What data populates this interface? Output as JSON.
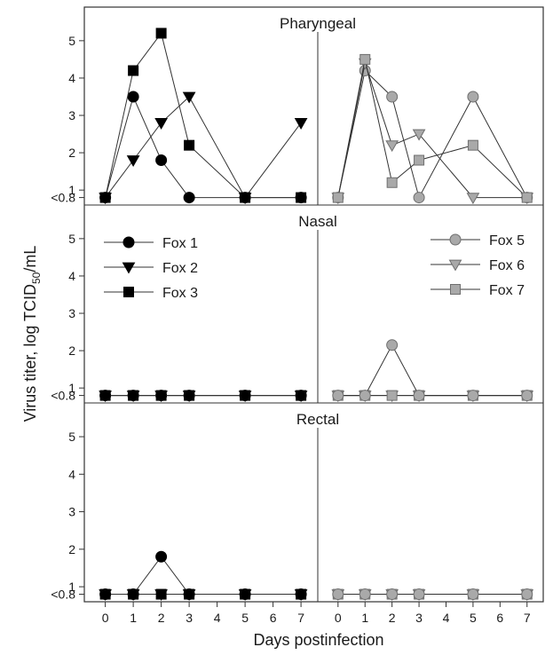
{
  "chart_data": {
    "type": "line",
    "xlabel": "Days postinfection",
    "ylabel": {
      "prefix": "Virus titer, log TCID",
      "sub": "50",
      "suffix": "/mL"
    },
    "x_ticks": [
      0,
      1,
      2,
      3,
      4,
      5,
      6,
      7
    ],
    "y_ticks": [
      {
        "value": 0.8,
        "label": "<0.8"
      },
      {
        "value": 1,
        "label": "1"
      },
      {
        "value": 2,
        "label": "2"
      },
      {
        "value": 3,
        "label": "3"
      },
      {
        "value": 4,
        "label": "4"
      },
      {
        "value": 5,
        "label": "5"
      }
    ],
    "ylim": [
      0.6,
      5.9
    ],
    "xlim": [
      -0.75,
      7.6
    ],
    "grid": false,
    "legend_left": {
      "placement": "top-left of Nasal panel",
      "entries": [
        "Fox 1",
        "Fox 2",
        "Fox 3"
      ]
    },
    "legend_right": {
      "placement": "top-right of Nasal panel",
      "entries": [
        "Fox 5",
        "Fox 6",
        "Fox 7"
      ]
    },
    "colors": {
      "group_left": "#000000",
      "group_right_fill": "#a9a9a9",
      "group_right_stroke": "#6f6f6f",
      "line": "#333333"
    },
    "panels": [
      {
        "title": "Pharyngeal",
        "left": [
          {
            "name": "Fox 1",
            "marker": "circle",
            "x": [
              0,
              1,
              2,
              3,
              5,
              7
            ],
            "y": [
              0.8,
              3.5,
              1.8,
              0.8,
              0.8,
              0.8
            ]
          },
          {
            "name": "Fox 2",
            "marker": "triangle-down",
            "x": [
              0,
              1,
              2,
              3,
              5,
              7
            ],
            "y": [
              0.8,
              1.8,
              2.8,
              3.5,
              0.8,
              2.8
            ]
          },
          {
            "name": "Fox 3",
            "marker": "square",
            "x": [
              0,
              1,
              2,
              3,
              5,
              7
            ],
            "y": [
              0.8,
              4.2,
              5.2,
              2.2,
              0.8,
              0.8
            ]
          }
        ],
        "right": [
          {
            "name": "Fox 5",
            "marker": "circle",
            "x": [
              0,
              1,
              2,
              3,
              5,
              7
            ],
            "y": [
              0.8,
              4.2,
              3.5,
              0.8,
              3.5,
              0.8
            ]
          },
          {
            "name": "Fox 6",
            "marker": "triangle-down",
            "x": [
              0,
              1,
              2,
              3,
              5,
              7
            ],
            "y": [
              0.8,
              4.4,
              2.2,
              2.5,
              0.8,
              0.8
            ]
          },
          {
            "name": "Fox 7",
            "marker": "square",
            "x": [
              0,
              1,
              2,
              3,
              5,
              7
            ],
            "y": [
              0.8,
              4.5,
              1.2,
              1.8,
              2.2,
              0.8
            ]
          }
        ]
      },
      {
        "title": "Nasal",
        "left": [
          {
            "name": "Fox 1",
            "marker": "circle",
            "x": [
              0,
              1,
              2,
              3,
              5,
              7
            ],
            "y": [
              0.8,
              0.8,
              0.8,
              0.8,
              0.8,
              0.8
            ]
          },
          {
            "name": "Fox 2",
            "marker": "triangle-down",
            "x": [
              0,
              1,
              2,
              3,
              5,
              7
            ],
            "y": [
              0.8,
              0.8,
              0.8,
              0.8,
              0.8,
              0.8
            ]
          },
          {
            "name": "Fox 3",
            "marker": "square",
            "x": [
              0,
              1,
              2,
              3,
              5,
              7
            ],
            "y": [
              0.8,
              0.8,
              0.8,
              0.8,
              0.8,
              0.8
            ]
          }
        ],
        "right": [
          {
            "name": "Fox 6",
            "marker": "triangle-down",
            "x": [
              0,
              1,
              2,
              3,
              5,
              7
            ],
            "y": [
              0.8,
              0.8,
              0.8,
              0.8,
              0.8,
              0.8
            ]
          },
          {
            "name": "Fox 7",
            "marker": "square",
            "x": [
              0,
              1,
              2,
              3,
              5,
              7
            ],
            "y": [
              0.8,
              0.8,
              0.8,
              0.8,
              0.8,
              0.8
            ]
          },
          {
            "name": "Fox 5",
            "marker": "circle",
            "x": [
              0,
              1,
              2,
              3,
              5,
              7
            ],
            "y": [
              0.8,
              0.8,
              2.15,
              0.8,
              0.8,
              0.8
            ]
          }
        ]
      },
      {
        "title": "Rectal",
        "left": [
          {
            "name": "Fox 2",
            "marker": "triangle-down",
            "x": [
              0,
              1,
              2,
              3,
              5,
              7
            ],
            "y": [
              0.8,
              0.8,
              0.8,
              0.8,
              0.8,
              0.8
            ]
          },
          {
            "name": "Fox 3",
            "marker": "square",
            "x": [
              0,
              1,
              2,
              3,
              5,
              7
            ],
            "y": [
              0.8,
              0.8,
              0.8,
              0.8,
              0.8,
              0.8
            ]
          },
          {
            "name": "Fox 1",
            "marker": "circle",
            "x": [
              0,
              1,
              2,
              3,
              5,
              7
            ],
            "y": [
              0.8,
              0.8,
              1.8,
              0.8,
              0.8,
              0.8
            ]
          }
        ],
        "right": [
          {
            "name": "Fox 6",
            "marker": "triangle-down",
            "x": [
              0,
              1,
              2,
              3,
              5,
              7
            ],
            "y": [
              0.8,
              0.8,
              0.8,
              0.8,
              0.8,
              0.8
            ]
          },
          {
            "name": "Fox 7",
            "marker": "square",
            "x": [
              0,
              1,
              2,
              3,
              5,
              7
            ],
            "y": [
              0.8,
              0.8,
              0.8,
              0.8,
              0.8,
              0.8
            ]
          },
          {
            "name": "Fox 5",
            "marker": "circle",
            "x": [
              0,
              1,
              2,
              3,
              5,
              7
            ],
            "y": [
              0.8,
              0.8,
              0.8,
              0.8,
              0.8,
              0.8
            ]
          }
        ]
      }
    ]
  }
}
